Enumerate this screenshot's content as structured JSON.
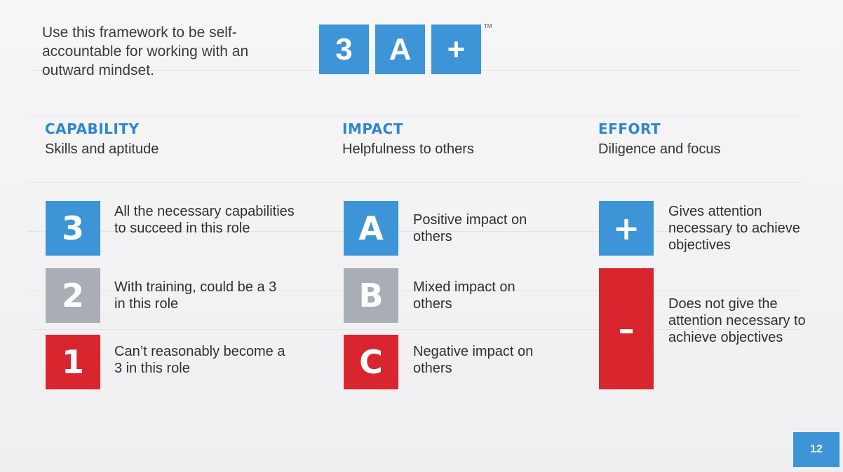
{
  "intro": {
    "text": "Use this framework to be self-accountable for working with an outward mindset."
  },
  "logo": {
    "tiles": [
      "3",
      "A",
      "+"
    ],
    "trademark": "TM"
  },
  "columns": [
    {
      "title": "CAPABILITY",
      "subtitle": "Skills and aptitude",
      "levels": [
        {
          "symbol": "3",
          "text": "All the necessary capabilities to succeed in this role",
          "color": "#3d94d6"
        },
        {
          "symbol": "2",
          "text": "With training, could be a 3 in this role",
          "color": "#a9adb6"
        },
        {
          "symbol": "1",
          "text": "Can’t reasonably become a 3 in this role",
          "color": "#d9262e"
        }
      ]
    },
    {
      "title": "IMPACT",
      "subtitle": "Helpfulness to others",
      "levels": [
        {
          "symbol": "A",
          "text": "Positive impact on others",
          "color": "#3d94d6"
        },
        {
          "symbol": "B",
          "text": "Mixed impact on others",
          "color": "#a9adb6"
        },
        {
          "symbol": "C",
          "text": "Negative impact on others",
          "color": "#d9262e"
        }
      ]
    },
    {
      "title": "EFFORT",
      "subtitle": "Diligence and focus",
      "levels": [
        {
          "symbol": "+",
          "text": "Gives attention necessary to achieve objectives",
          "color": "#3d94d6"
        },
        {
          "symbol": "–",
          "text": "Does not give the attention necessary to achieve objectives",
          "color": "#d9262e"
        }
      ]
    }
  ],
  "page_number": "12",
  "colors": {
    "blue": "#3d94d6",
    "gray": "#a9adb6",
    "red": "#d9262e",
    "heading_blue": "#2f86cf"
  }
}
